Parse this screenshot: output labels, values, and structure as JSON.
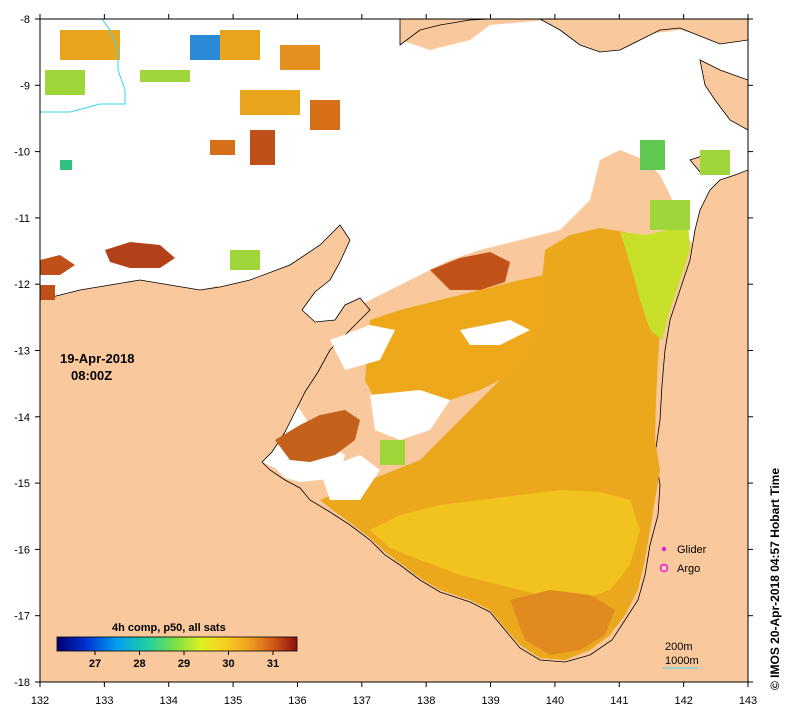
{
  "map": {
    "x_ticks": [
      "132",
      "133",
      "134",
      "135",
      "136",
      "137",
      "138",
      "139",
      "140",
      "141",
      "142",
      "143"
    ],
    "y_ticks": [
      "-8",
      "-9",
      "-10",
      "-11",
      "-12",
      "-13",
      "-14",
      "-15",
      "-16",
      "-17",
      "-18"
    ],
    "date": "19-Apr-2018",
    "time": "08:00Z",
    "colorbar": {
      "title": "4h comp, p50, all sats",
      "labels": [
        "27",
        "28",
        "29",
        "30",
        "31"
      ]
    },
    "legend": {
      "glider": "Glider",
      "argo": "Argo"
    },
    "contours": {
      "c200": "200m",
      "c1000": "1000m"
    },
    "credit": "© IMOS 20-Apr-2018 04:57 Hobart Time",
    "colors": {
      "land": "#f9c99d",
      "cloud": "#ffffff",
      "sst_warm": "#e8a21a",
      "sst_hot": "#b2411a",
      "sst_cool": "#9fd63a",
      "contour": "#33d6f0",
      "glider": "#e020e0"
    }
  }
}
